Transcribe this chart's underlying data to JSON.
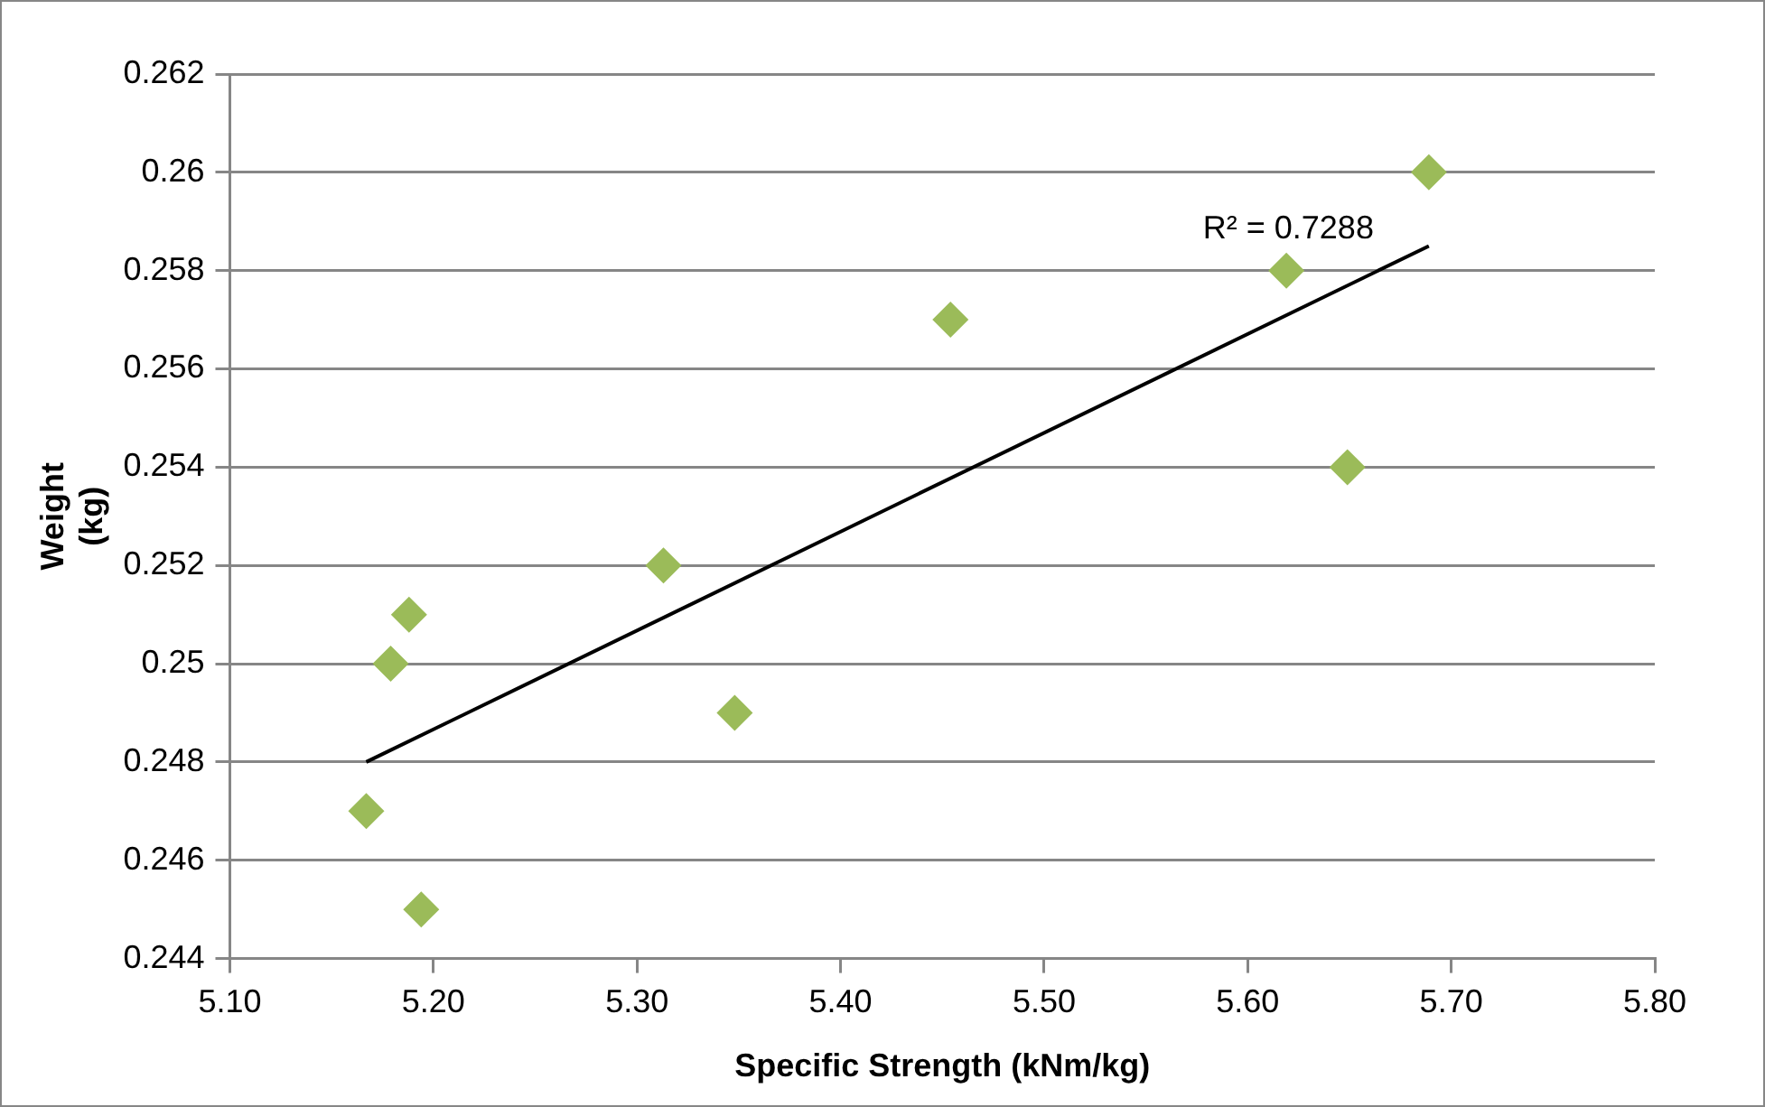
{
  "chart_data": {
    "type": "scatter",
    "xlabel": "Specific Strength (kNm/kg)",
    "ylabel": "Weight (kg)",
    "xlim": [
      5.1,
      5.8
    ],
    "xticks": [
      {
        "value": 5.1,
        "label": "5.10"
      },
      {
        "value": 5.2,
        "label": "5.20"
      },
      {
        "value": 5.3,
        "label": "5.30"
      },
      {
        "value": 5.4,
        "label": "5.40"
      },
      {
        "value": 5.5,
        "label": "5.50"
      },
      {
        "value": 5.6,
        "label": "5.60"
      },
      {
        "value": 5.7,
        "label": "5.70"
      },
      {
        "value": 5.8,
        "label": "5.80"
      }
    ],
    "ylim": [
      0.244,
      0.262
    ],
    "yticks": [
      0.244,
      0.246,
      0.248,
      0.25,
      0.252,
      0.254,
      0.256,
      0.258,
      0.26,
      0.262
    ],
    "grid": "y",
    "legend": false,
    "marker": "diamond",
    "series": [
      {
        "color": "#9bbb59",
        "x": [
          5.167,
          5.179,
          5.188,
          5.194,
          5.313,
          5.348,
          5.454,
          5.619,
          5.649,
          5.689
        ],
        "values": [
          0.247,
          0.25,
          0.251,
          0.245,
          0.252,
          0.249,
          0.257,
          0.258,
          0.254,
          0.26
        ]
      },
      {
        "type": "line",
        "color": "#000000",
        "marker": "none",
        "line_style": "solid",
        "x": [
          5.167,
          5.689
        ],
        "values": [
          0.248,
          0.2585
        ]
      }
    ],
    "annotations": [
      {
        "text": "R² = 0.7288",
        "x": 5.62,
        "y": 0.2585
      }
    ]
  }
}
